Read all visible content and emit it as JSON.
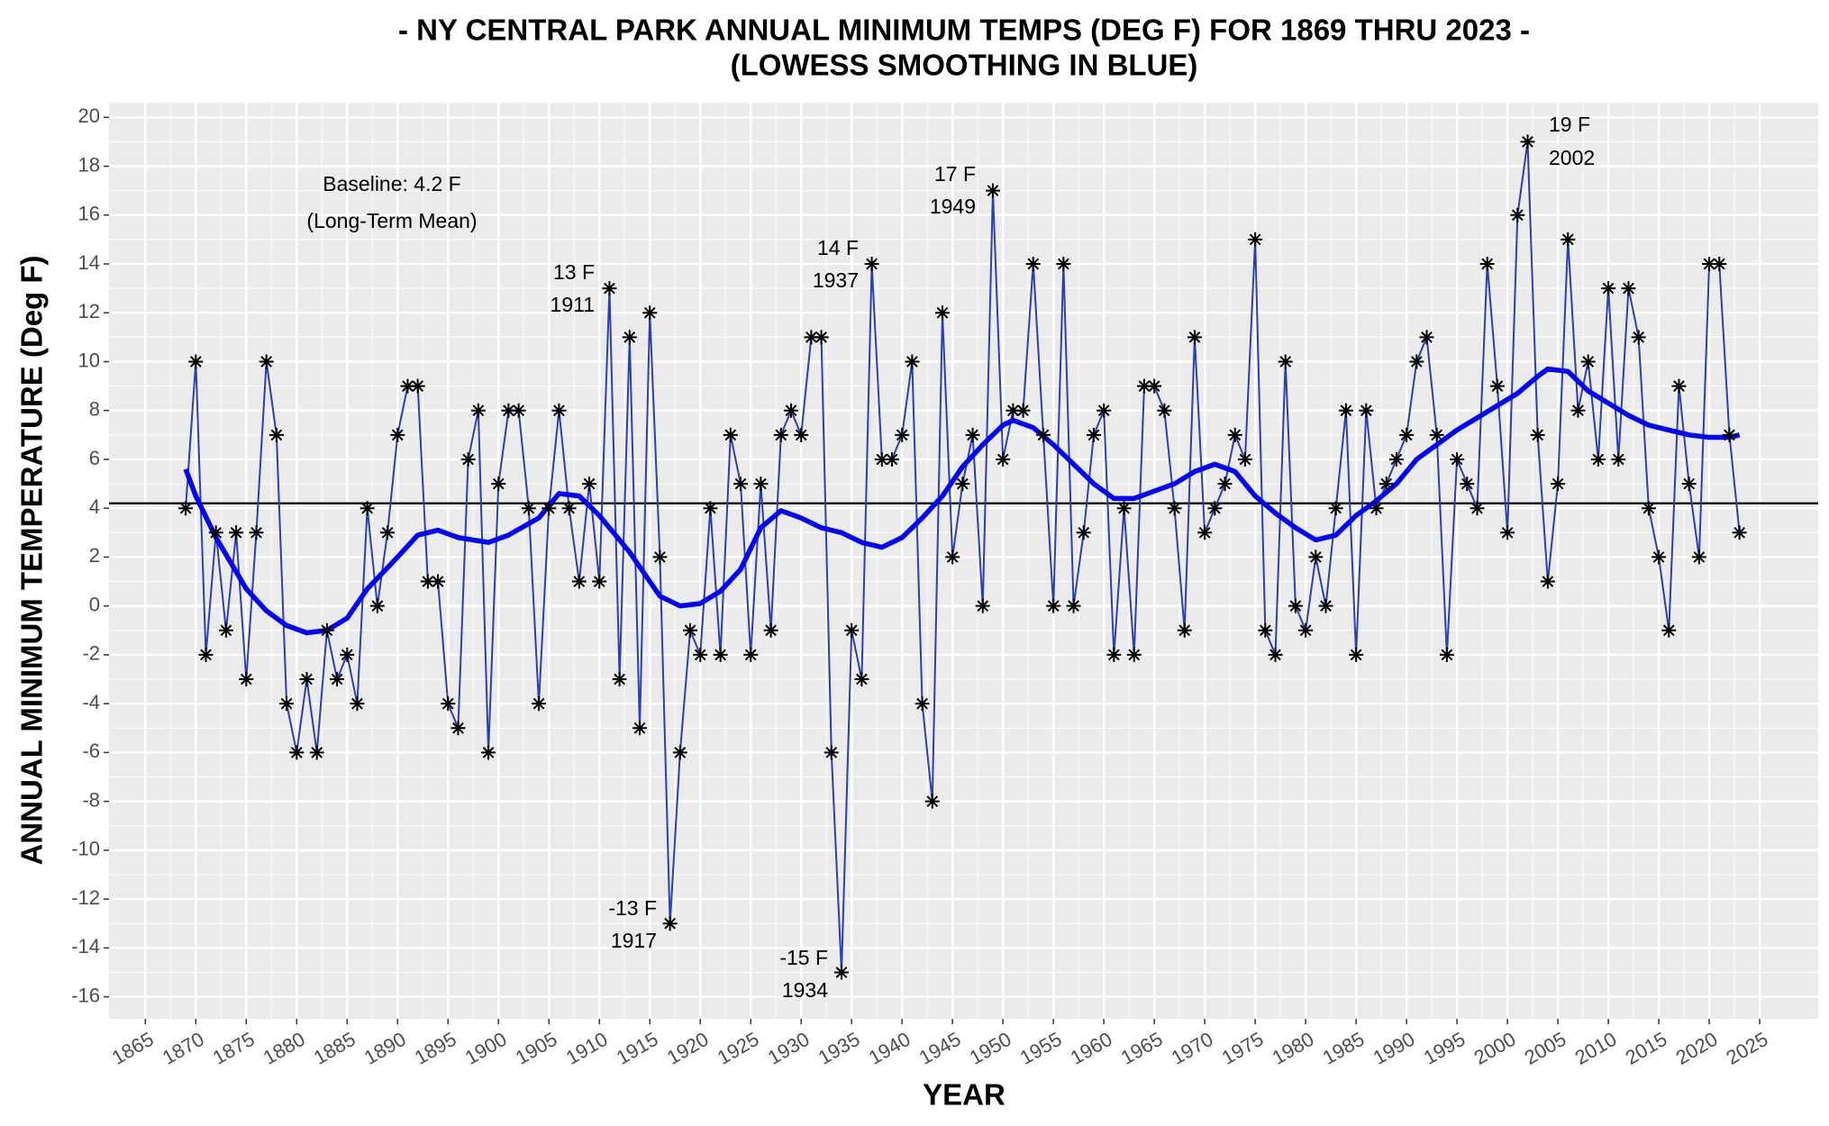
{
  "chart_data": {
    "type": "line",
    "title": [
      "- NY CENTRAL PARK ANNUAL MINIMUM TEMPS (DEG F) FOR 1869 THRU 2023 -",
      "(LOWESS SMOOTHING IN BLUE)"
    ],
    "x_label": "YEAR",
    "y_label": "ANNUAL MINIMUM TEMPERATURE (Deg F)",
    "x": [
      1869,
      1870,
      1871,
      1872,
      1873,
      1874,
      1875,
      1876,
      1877,
      1878,
      1879,
      1880,
      1881,
      1882,
      1883,
      1884,
      1885,
      1886,
      1887,
      1888,
      1889,
      1890,
      1891,
      1892,
      1893,
      1894,
      1895,
      1896,
      1897,
      1898,
      1899,
      1900,
      1901,
      1902,
      1903,
      1904,
      1905,
      1906,
      1907,
      1908,
      1909,
      1910,
      1911,
      1912,
      1913,
      1914,
      1915,
      1916,
      1917,
      1918,
      1919,
      1920,
      1921,
      1922,
      1923,
      1924,
      1925,
      1926,
      1927,
      1928,
      1929,
      1930,
      1931,
      1932,
      1933,
      1934,
      1935,
      1936,
      1937,
      1938,
      1939,
      1940,
      1941,
      1942,
      1943,
      1944,
      1945,
      1946,
      1947,
      1948,
      1949,
      1950,
      1951,
      1952,
      1953,
      1954,
      1955,
      1956,
      1957,
      1958,
      1959,
      1960,
      1961,
      1962,
      1963,
      1964,
      1965,
      1966,
      1967,
      1968,
      1969,
      1970,
      1971,
      1972,
      1973,
      1974,
      1975,
      1976,
      1977,
      1978,
      1979,
      1980,
      1981,
      1982,
      1983,
      1984,
      1985,
      1986,
      1987,
      1988,
      1989,
      1990,
      1991,
      1992,
      1993,
      1994,
      1995,
      1996,
      1997,
      1998,
      1999,
      2000,
      2001,
      2002,
      2003,
      2004,
      2005,
      2006,
      2007,
      2008,
      2009,
      2010,
      2011,
      2012,
      2013,
      2014,
      2015,
      2016,
      2017,
      2018,
      2019,
      2020,
      2021,
      2022,
      2023
    ],
    "series": [
      {
        "color": "#2a3fb5",
        "marker_color": "#000000",
        "values": [
          4,
          10,
          -2,
          3,
          -1,
          3,
          -3,
          3,
          10,
          7,
          -4,
          -6,
          -3,
          -6,
          -1,
          -3,
          -2,
          -4,
          4,
          0,
          3,
          7,
          9,
          9,
          1,
          1,
          -4,
          -5,
          6,
          8,
          -6,
          5,
          8,
          8,
          4,
          -4,
          4,
          8,
          4,
          1,
          5,
          1,
          13,
          -3,
          11,
          -5,
          12,
          2,
          -13,
          -6,
          -1,
          -2,
          4,
          -2,
          7,
          5,
          -2,
          5,
          -1,
          7,
          8,
          7,
          11,
          11,
          -6,
          -15,
          -1,
          -3,
          14,
          6,
          6,
          7,
          10,
          -4,
          -8,
          12,
          2,
          5,
          7,
          0,
          17,
          6,
          8,
          8,
          14,
          7,
          0,
          14,
          0,
          3,
          7,
          8,
          -2,
          4,
          -2,
          9,
          9,
          8,
          4,
          -1,
          11,
          3,
          4,
          5,
          7,
          6,
          15,
          -1,
          -2,
          10,
          0,
          -1,
          2,
          0,
          4,
          8,
          -2,
          8,
          4,
          5,
          6,
          7,
          10,
          11,
          7,
          -2,
          6,
          5,
          4,
          14,
          9,
          3,
          16,
          19,
          7,
          1,
          5,
          15,
          8,
          10,
          6,
          13,
          6,
          13,
          11,
          4,
          2,
          -1,
          9,
          5,
          2,
          14,
          14,
          7,
          3
        ]
      },
      {
        "color": "#0000ff",
        "x": [
          1869,
          1870,
          1872,
          1875,
          1877,
          1879,
          1881,
          1883,
          1885,
          1887,
          1890,
          1892,
          1894,
          1896,
          1899,
          1901,
          1904,
          1906,
          1908,
          1910,
          1913,
          1916,
          1918,
          1920,
          1922,
          1924,
          1926,
          1928,
          1930,
          1932,
          1934,
          1936,
          1938,
          1940,
          1942,
          1944,
          1946,
          1948,
          1950,
          1951,
          1953,
          1955,
          1957,
          1959,
          1961,
          1963,
          1965,
          1967,
          1969,
          1971,
          1973,
          1975,
          1977,
          1979,
          1981,
          1983,
          1985,
          1987,
          1989,
          1991,
          1993,
          1995,
          1997,
          1999,
          2001,
          2003,
          2004,
          2006,
          2008,
          2010,
          2012,
          2014,
          2016,
          2018,
          2020,
          2022,
          2023
        ],
        "values": [
          5.6,
          4.5,
          2.8,
          0.7,
          -0.2,
          -0.8,
          -1.1,
          -1.0,
          -0.5,
          0.7,
          2.0,
          2.9,
          3.1,
          2.8,
          2.6,
          2.9,
          3.6,
          4.6,
          4.5,
          3.7,
          2.2,
          0.4,
          0.0,
          0.1,
          0.6,
          1.5,
          3.2,
          3.9,
          3.6,
          3.2,
          3.0,
          2.6,
          2.4,
          2.8,
          3.6,
          4.5,
          5.7,
          6.6,
          7.4,
          7.6,
          7.3,
          6.6,
          5.8,
          5.0,
          4.4,
          4.4,
          4.7,
          5.0,
          5.5,
          5.8,
          5.5,
          4.5,
          3.8,
          3.2,
          2.7,
          2.9,
          3.7,
          4.3,
          5.0,
          6.0,
          6.6,
          7.2,
          7.7,
          8.2,
          8.7,
          9.4,
          9.7,
          9.6,
          8.8,
          8.3,
          7.8,
          7.4,
          7.2,
          7.0,
          6.9,
          6.9,
          7.0
        ]
      }
    ],
    "hline": 4.2,
    "hline_color": "#000000",
    "annotations": [
      [
        "Baseline: 4.2 F",
        "(Long-Term Mean)"
      ],
      [
        "13 F",
        "1911"
      ],
      [
        "14 F",
        "1937"
      ],
      [
        "17 F",
        "1949"
      ],
      [
        "19 F",
        "2002"
      ],
      [
        "-13 F",
        "1917"
      ],
      [
        "-15 F",
        "1934"
      ]
    ],
    "xlim": [
      1861.4,
      2030.8
    ],
    "ylim": [
      -16.9,
      20.6
    ],
    "xticks": [
      1865,
      1870,
      1875,
      1880,
      1885,
      1890,
      1895,
      1900,
      1905,
      1910,
      1915,
      1920,
      1925,
      1930,
      1935,
      1940,
      1945,
      1950,
      1955,
      1960,
      1965,
      1970,
      1975,
      1980,
      1985,
      1990,
      1995,
      2000,
      2005,
      2010,
      2015,
      2020,
      2025
    ],
    "yticks": [
      -16,
      -14,
      -12,
      -10,
      -8,
      -6,
      -4,
      -2,
      0,
      2,
      4,
      6,
      8,
      10,
      12,
      14,
      16,
      18,
      20
    ],
    "grid": true,
    "panel_color": "#ebebeb"
  }
}
